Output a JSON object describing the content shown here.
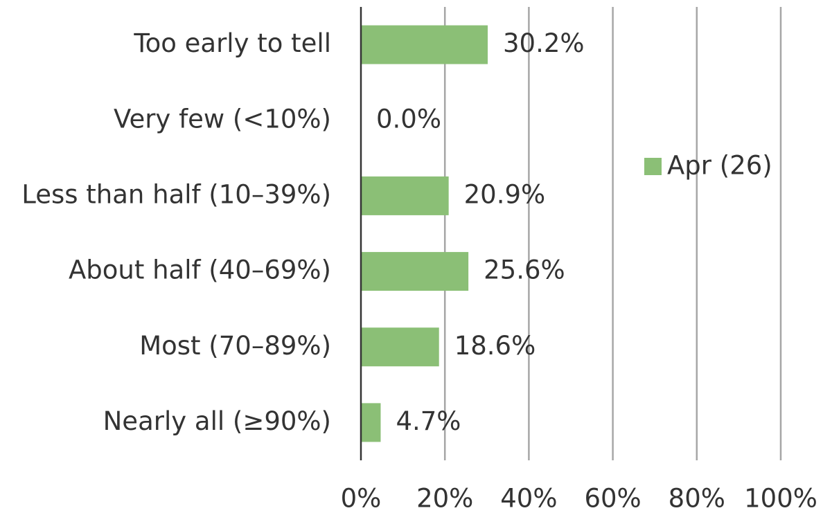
{
  "chart_data": {
    "type": "bar",
    "orientation": "horizontal",
    "categories": [
      "Too early to tell",
      "Very few (<10%)",
      "Less than half (10–39%)",
      "About half (40–69%)",
      "Most (70–89%)",
      "Nearly all (≥90%)"
    ],
    "series": [
      {
        "name": "Apr (26)",
        "color": "#8bbf76",
        "values": [
          30.2,
          0.0,
          20.9,
          25.6,
          18.6,
          4.7
        ],
        "value_labels": [
          "30.2%",
          "0.0%",
          "20.9%",
          "25.6%",
          "18.6%",
          "4.7%"
        ]
      }
    ],
    "xlim": [
      0,
      100
    ],
    "xticks": [
      {
        "value": 0,
        "label": "0%"
      },
      {
        "value": 20,
        "label": "20%"
      },
      {
        "value": 40,
        "label": "40%"
      },
      {
        "value": 60,
        "label": "60%"
      },
      {
        "value": 80,
        "label": "80%"
      },
      {
        "value": 100,
        "label": "100%"
      }
    ],
    "grid": true,
    "legend": "right"
  }
}
